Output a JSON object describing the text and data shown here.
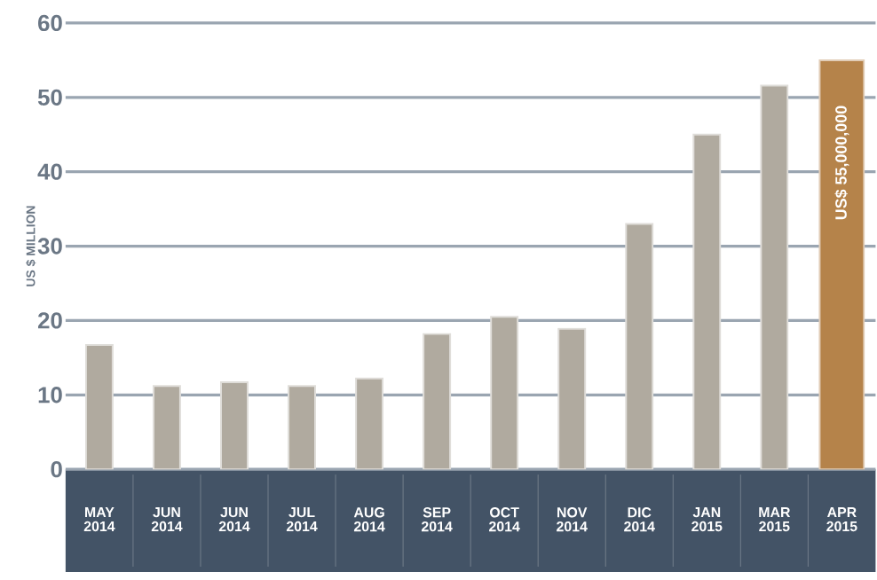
{
  "chart_data": {
    "type": "bar",
    "ylabel": "US $ MILLION",
    "categories": [
      "MAY 2014",
      "JUN 2014",
      "JUN 2014",
      "JUL 2014",
      "AUG 2014",
      "SEP 2014",
      "OCT 2014",
      "NOV 2014",
      "DIC 2014",
      "JAN 2015",
      "MAR 2015",
      "APR 2015"
    ],
    "values": [
      16.7,
      11.2,
      11.7,
      11.2,
      12.2,
      18.2,
      20.5,
      18.9,
      33.0,
      45.0,
      51.6,
      55
    ],
    "colors": [
      "#b0aa9f",
      "#b0aa9f",
      "#b0aa9f",
      "#b0aa9f",
      "#b0aa9f",
      "#b0aa9f",
      "#b0aa9f",
      "#b0aa9f",
      "#b0aa9f",
      "#b0aa9f",
      "#b0aa9f",
      "#b5834a"
    ],
    "value_labels": [
      null,
      null,
      null,
      null,
      null,
      null,
      null,
      null,
      null,
      null,
      null,
      "US$ 55,000,000"
    ],
    "ylim": [
      0,
      60
    ],
    "yticks": [
      0,
      10,
      20,
      30,
      40,
      50,
      60
    ],
    "grid": "y"
  }
}
